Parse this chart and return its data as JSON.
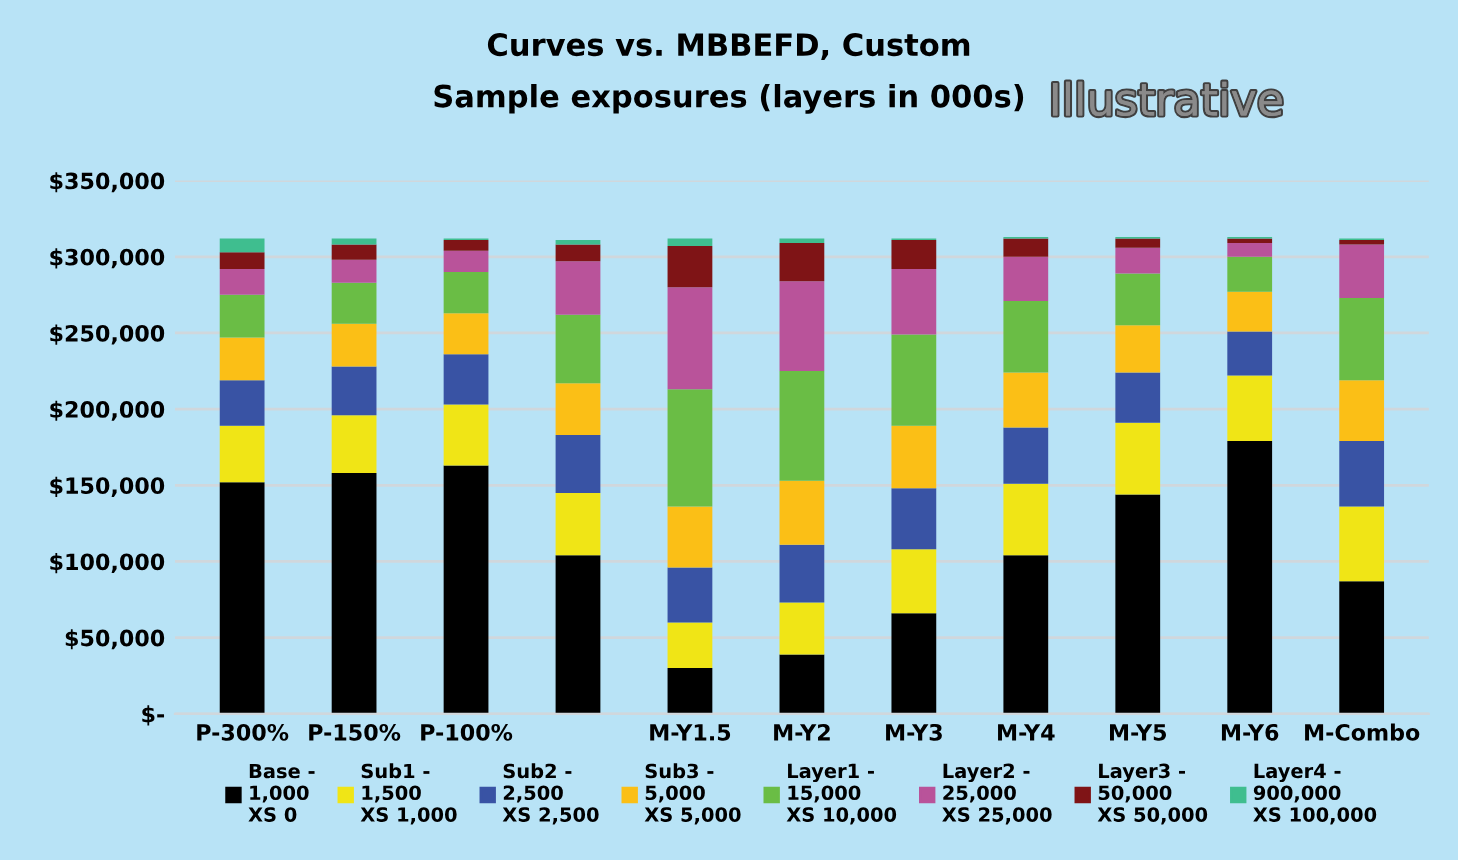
{
  "chart_data": {
    "type": "bar",
    "stacked": true,
    "title": "Curves vs. MBBEFD, Custom",
    "subtitle": "Sample exposures (layers in 000s)",
    "annotations": [
      "Illustrative"
    ],
    "categories": [
      "P-300%",
      "P-150%",
      "P-100%",
      null,
      "M-Y1.5",
      "M-Y2",
      "M-Y3",
      "M-Y4",
      "M-Y5",
      "M-Y6",
      "M-Combo"
    ],
    "series": [
      {
        "name": "Base -\n1,000\nXS 0",
        "color": "#000000",
        "values": [
          152000,
          158000,
          163000,
          104000,
          30000,
          39000,
          66000,
          104000,
          144000,
          179000,
          87000
        ]
      },
      {
        "name": "Sub1 -\n1,500\nXS 1,000",
        "color": "#f0e516",
        "values": [
          37000,
          38000,
          40000,
          41000,
          30000,
          34000,
          42000,
          47000,
          47000,
          43000,
          49000
        ]
      },
      {
        "name": "Sub2 -\n2,500\nXS 2,500",
        "color": "#3953a4",
        "values": [
          30000,
          32000,
          33000,
          38000,
          36000,
          38000,
          40000,
          37000,
          33000,
          29000,
          43000
        ]
      },
      {
        "name": "Sub3 -\n5,000\nXS 5,000",
        "color": "#fbbf16",
        "values": [
          28000,
          28000,
          27000,
          34000,
          40000,
          42000,
          41000,
          36000,
          31000,
          26000,
          40000
        ]
      },
      {
        "name": "Layer1 -\n15,000\nXS 10,000",
        "color": "#6abd45",
        "values": [
          28000,
          27000,
          27000,
          45000,
          77000,
          72000,
          60000,
          47000,
          34000,
          23000,
          54000
        ]
      },
      {
        "name": "Layer2 -\n25,000\nXS 25,000",
        "color": "#b9539a",
        "values": [
          17000,
          15000,
          14000,
          35000,
          67000,
          59000,
          43000,
          29000,
          17000,
          9000,
          35000
        ]
      },
      {
        "name": "Layer3 -\n50,000\nXS 50,000",
        "color": "#7f1416",
        "values": [
          11000,
          10000,
          7000,
          11000,
          27000,
          25000,
          19000,
          12000,
          6000,
          3000,
          3000
        ]
      },
      {
        "name": "Layer4 -\n900,000\nXS 100,000",
        "color": "#3fbe8f",
        "values": [
          9000,
          4000,
          1000,
          3000,
          5000,
          3000,
          1000,
          1000,
          1000,
          1000,
          1000
        ]
      }
    ],
    "ylim": [
      0,
      350000
    ],
    "yticks": [
      {
        "value": 0,
        "label": "$-"
      },
      {
        "value": 50000,
        "label": "$50,000"
      },
      {
        "value": 100000,
        "label": "$100,000"
      },
      {
        "value": 150000,
        "label": "$150,000"
      },
      {
        "value": 200000,
        "label": "$200,000"
      },
      {
        "value": 250000,
        "label": "$250,000"
      },
      {
        "value": 300000,
        "label": "$300,000"
      },
      {
        "value": 350000,
        "label": "$350,000"
      }
    ],
    "grid": "y",
    "legend": "bottom"
  }
}
